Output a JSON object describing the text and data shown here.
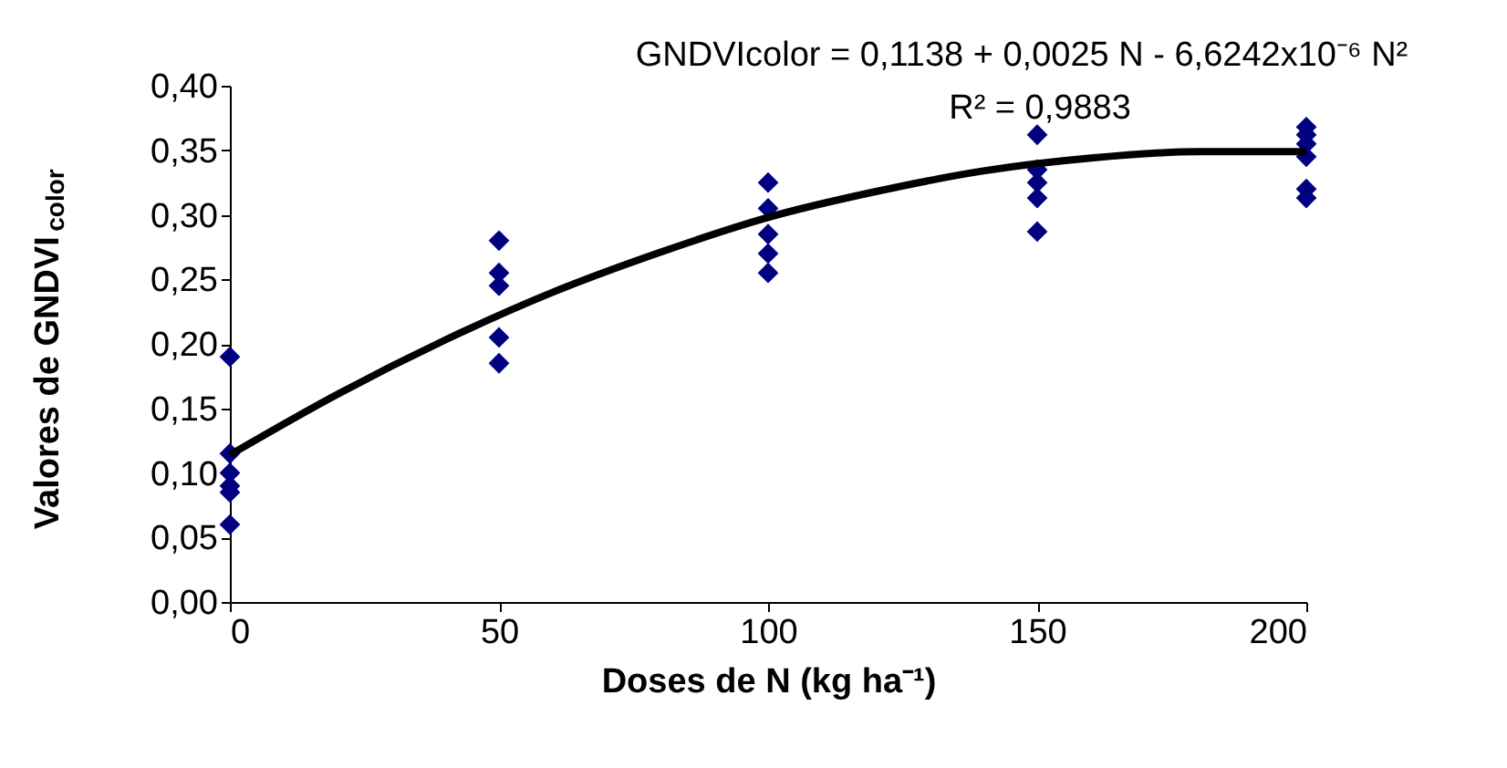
{
  "chart_data": {
    "type": "scatter",
    "xlabel": "Doses de N (kg ha⁻¹)",
    "ylabel": "Valores de GNDVI$_{color}$",
    "annotations": [
      "GNDVIcolor = 0,1138 + 0,0025 N - 6,6242x10⁻⁶ N²",
      "R² = 0,9883"
    ],
    "series": [
      {
        "type": "scatter",
        "color": "#000080",
        "marker": "diamond",
        "x": [
          0,
          0,
          0,
          0,
          0,
          0,
          50,
          50,
          50,
          50,
          50,
          100,
          100,
          100,
          100,
          100,
          150,
          150,
          150,
          150,
          150,
          200,
          200,
          200,
          200,
          200,
          200
        ],
        "values": [
          0.19,
          0.115,
          0.1,
          0.09,
          0.085,
          0.06,
          0.28,
          0.255,
          0.245,
          0.205,
          0.185,
          0.325,
          0.305,
          0.285,
          0.27,
          0.255,
          0.362,
          0.335,
          0.325,
          0.313,
          0.287,
          0.368,
          0.362,
          0.355,
          0.345,
          0.32,
          0.313
        ]
      },
      {
        "type": "line",
        "color": "#000000",
        "marker": "none",
        "x": [
          0,
          20,
          40,
          60,
          80,
          100,
          120,
          140,
          160,
          180,
          200
        ],
        "values": [
          0.114,
          0.161,
          0.203,
          0.24,
          0.271,
          0.298,
          0.318,
          0.334,
          0.344,
          0.349,
          0.349
        ]
      }
    ],
    "xlim": [
      0,
      200
    ],
    "xticks": [
      0,
      50,
      100,
      150,
      200
    ],
    "ylim": [
      0,
      0.4
    ],
    "yticks": [
      {
        "value": 0,
        "label": "0,00"
      },
      {
        "value": 0.05,
        "label": "0,05"
      },
      {
        "value": 0.1,
        "label": "0,10"
      },
      {
        "value": 0.15,
        "label": "0,15"
      },
      {
        "value": 0.2,
        "label": "0,20"
      },
      {
        "value": 0.25,
        "label": "0,25"
      },
      {
        "value": 0.3,
        "label": "0,30"
      },
      {
        "value": 0.35,
        "label": "0,35"
      },
      {
        "value": 0.4,
        "label": "0,40"
      }
    ],
    "grid": false
  }
}
